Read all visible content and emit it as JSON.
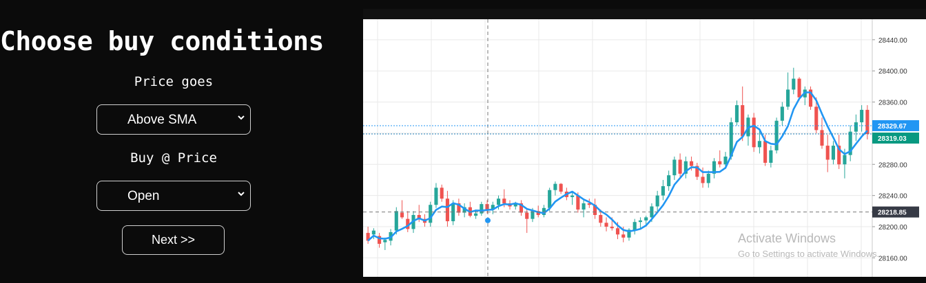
{
  "form": {
    "title": "Choose buy conditions",
    "price_label": "Price goes",
    "price_select": {
      "value": "Above SMA"
    },
    "buy_label": "Buy @ Price",
    "buy_select": {
      "value": "Open"
    },
    "next_button": "Next >>"
  },
  "chart_data": {
    "type": "candlestick",
    "series": [
      {
        "name": "Price"
      },
      {
        "name": "SMA"
      }
    ],
    "y_ticks": [
      "28440.00",
      "28400.00",
      "28360.00",
      "28280.00",
      "28240.00",
      "28200.00",
      "28160.00"
    ],
    "price_labels": {
      "sma": "28329.67",
      "last": "28319.03",
      "crosshair": "28218.85"
    },
    "colors": {
      "up": "#26a69a",
      "down": "#ef5350",
      "sma": "#2196f3",
      "last_bg": "#089981",
      "crosshair_bg": "#363a45"
    },
    "grid": true
  },
  "watermark": {
    "title": "Activate Windows",
    "subtitle": "Go to Settings to activate Windows."
  }
}
